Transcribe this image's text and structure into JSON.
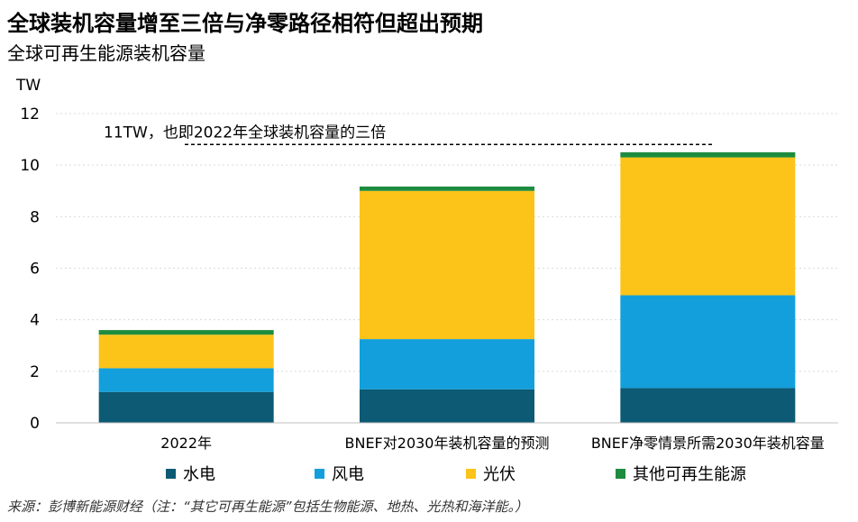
{
  "title": "全球装机容量增至三倍与净零路径相符但超出预期",
  "subtitle": "全球可再生能源装机容量",
  "source": "来源：彭博新能源财经（注：“其它可再生能源”包括生物能源、地热、光热和海洋能。）",
  "chart_data": {
    "type": "bar",
    "stacked": true,
    "unit": "TW",
    "categories": [
      "2022年",
      "BNEF对2030年装机容量的预测",
      "BNEF净零情景所需2030年装机容量"
    ],
    "series": [
      {
        "name": "水电",
        "color": "#0c5a73",
        "values": [
          1.2,
          1.3,
          1.35
        ]
      },
      {
        "name": "风电",
        "color": "#139fdb",
        "values": [
          0.92,
          1.95,
          3.6
        ]
      },
      {
        "name": "光伏",
        "color": "#fcc419",
        "values": [
          1.3,
          5.75,
          5.35
        ]
      },
      {
        "name": "其他可再生能源",
        "color": "#1e8c3e",
        "values": [
          0.18,
          0.17,
          0.2
        ]
      }
    ],
    "ylim": [
      0,
      12
    ],
    "yticks": [
      0,
      2,
      4,
      6,
      8,
      10,
      12
    ],
    "grid": true,
    "legend_position": "bottom",
    "annotation": {
      "text": "11TW，也即2022年全球装机容量的三倍",
      "y": 10.8
    }
  }
}
